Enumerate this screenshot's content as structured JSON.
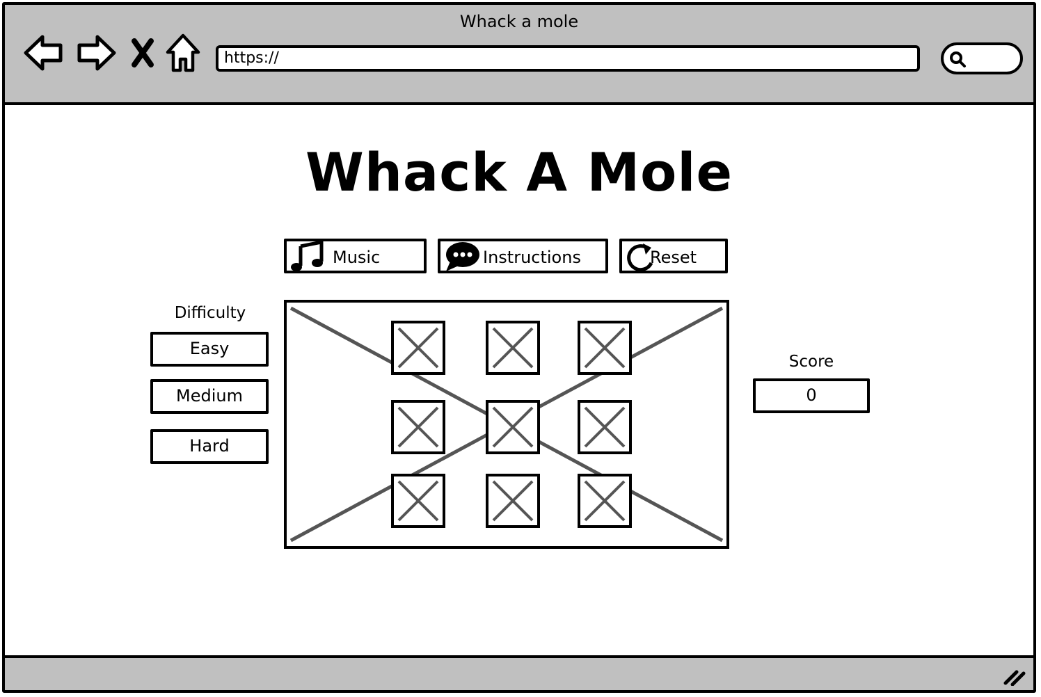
{
  "browser": {
    "window_title": "Whack a mole",
    "url": "https://",
    "icons": [
      "back-arrow-icon",
      "forward-arrow-icon",
      "close-x-icon",
      "home-icon",
      "search-icon",
      "resize-grip-icon"
    ]
  },
  "page": {
    "title": "Whack A Mole"
  },
  "toolbar": {
    "music_label": "Music",
    "instructions_label": "Instructions",
    "reset_label": "Reset"
  },
  "difficulty": {
    "label": "Difficulty",
    "options": [
      "Easy",
      "Medium",
      "Hard"
    ]
  },
  "score": {
    "label": "Score",
    "value": "0"
  },
  "board": {
    "rows": 3,
    "cols": 3
  }
}
